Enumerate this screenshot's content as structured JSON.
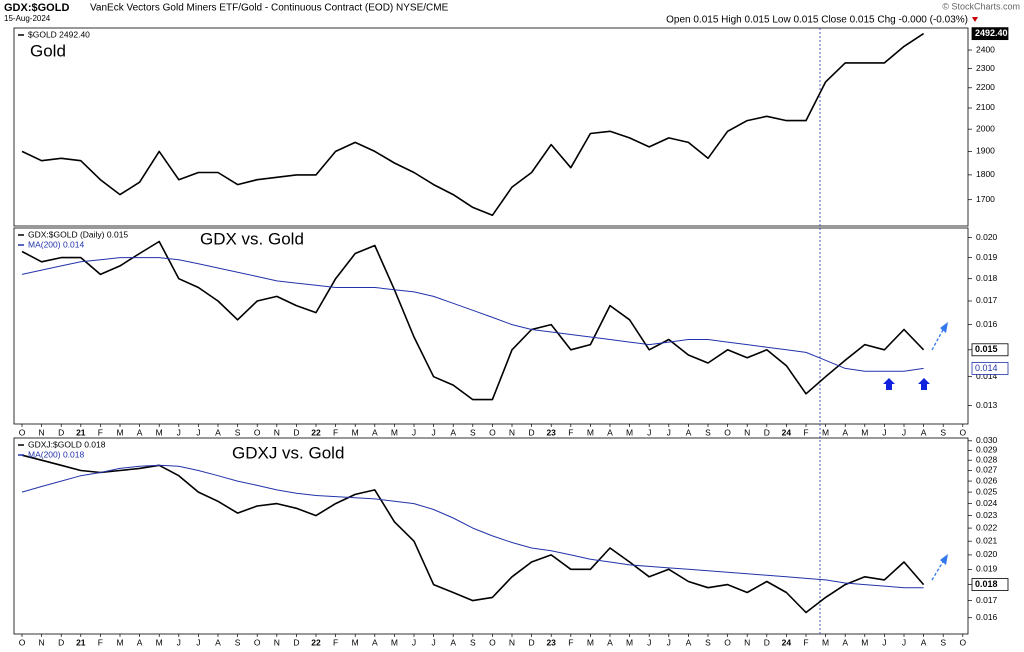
{
  "header": {
    "symbol": "GDX:$GOLD",
    "description": "VanEck Vectors Gold Miners ETF/Gold - Continuous Contract (EOD) NYSE/CME",
    "date": "15-Aug-2024",
    "quote": "Open 0.015 High 0.015 Low 0.015 Close 0.015 Chg -0.000 (-0.03%)",
    "source": "© StockCharts.com"
  },
  "chart_data": [
    {
      "type": "line",
      "title": "Gold",
      "log_scale": true,
      "ylim": [
        1600,
        2525
      ],
      "yticks": [
        1700,
        1800,
        1900,
        2000,
        2100,
        2200,
        2300,
        2400
      ],
      "series": [
        {
          "name": "$GOLD 2492.40",
          "color": "#000000",
          "last_label": "2492.40",
          "values": [
            1900,
            1860,
            1870,
            1860,
            1780,
            1720,
            1770,
            1900,
            1780,
            1810,
            1810,
            1760,
            1780,
            1790,
            1800,
            1800,
            1900,
            1940,
            1900,
            1850,
            1810,
            1760,
            1720,
            1670,
            1640,
            1750,
            1810,
            1930,
            1830,
            1980,
            1990,
            1960,
            1920,
            1960,
            1940,
            1870,
            1990,
            2040,
            2060,
            2040,
            2040,
            2230,
            2330,
            2330,
            2330,
            2420,
            2492.4,
            null,
            null
          ]
        }
      ]
    },
    {
      "type": "line",
      "title": "GDX vs. Gold",
      "log_scale": true,
      "ylim": [
        0.0124,
        0.0205
      ],
      "yticks": [
        0.013,
        0.014,
        0.015,
        0.016,
        0.017,
        0.018,
        0.019,
        {
          "value": 0.02,
          "label": "0.020"
        }
      ],
      "categories": [
        "O",
        "N",
        "D",
        "21",
        "F",
        "M",
        "A",
        "M",
        "J",
        "J",
        "A",
        "S",
        "O",
        "N",
        "D",
        "22",
        "F",
        "M",
        "A",
        "M",
        "J",
        "J",
        "A",
        "S",
        "O",
        "N",
        "D",
        "23",
        "F",
        "M",
        "A",
        "M",
        "J",
        "J",
        "A",
        "S",
        "O",
        "N",
        "D",
        "24",
        "F",
        "M",
        "A",
        "M",
        "J",
        "J",
        "A",
        "S",
        "O"
      ],
      "series": [
        {
          "name": "GDX:$GOLD (Daily) 0.015",
          "color": "#000000",
          "last_label": "0.015",
          "values": [
            0.0193,
            0.0188,
            0.019,
            0.019,
            0.0182,
            0.0186,
            0.0192,
            0.0198,
            0.018,
            0.0176,
            0.017,
            0.0162,
            0.017,
            0.0172,
            0.0168,
            0.0165,
            0.018,
            0.0192,
            0.0196,
            0.0175,
            0.0155,
            0.014,
            0.0137,
            0.0132,
            0.0132,
            0.015,
            0.0158,
            0.016,
            0.015,
            0.0152,
            0.0168,
            0.0162,
            0.015,
            0.0154,
            0.0148,
            0.0145,
            0.015,
            0.0147,
            0.015,
            0.0144,
            0.0134,
            0.014,
            0.0146,
            0.0152,
            0.015,
            0.0158,
            0.015,
            null,
            null
          ]
        },
        {
          "name": "MA(200) 0.014",
          "color": "#2233aa",
          "last_label": "0.014",
          "values": [
            0.0182,
            0.0184,
            0.0186,
            0.0188,
            0.0189,
            0.019,
            0.019,
            0.019,
            0.0189,
            0.0187,
            0.0185,
            0.0183,
            0.0181,
            0.0179,
            0.0178,
            0.0177,
            0.0176,
            0.0176,
            0.0176,
            0.0175,
            0.0174,
            0.0172,
            0.0169,
            0.0166,
            0.0163,
            0.016,
            0.0158,
            0.0157,
            0.0156,
            0.0155,
            0.0154,
            0.0153,
            0.0152,
            0.0153,
            0.0154,
            0.0154,
            0.0153,
            0.0152,
            0.0151,
            0.015,
            0.0149,
            0.0146,
            0.0143,
            0.0142,
            0.0142,
            0.0142,
            0.0143,
            null,
            null
          ]
        }
      ]
    },
    {
      "type": "line",
      "title": "GDXJ vs. Gold",
      "log_scale": true,
      "ylim": [
        0.0151,
        0.0303
      ],
      "yticks": [
        0.016,
        0.017,
        0.018,
        0.019,
        {
          "value": 0.02,
          "label": "0.020"
        },
        0.021,
        0.022,
        0.023,
        0.024,
        0.025,
        0.026,
        0.027,
        0.028,
        0.029,
        {
          "value": 0.03,
          "label": "0.030"
        }
      ],
      "categories": [
        "O",
        "N",
        "D",
        "21",
        "F",
        "M",
        "A",
        "M",
        "J",
        "J",
        "A",
        "S",
        "O",
        "N",
        "D",
        "22",
        "F",
        "M",
        "A",
        "M",
        "J",
        "J",
        "A",
        "S",
        "O",
        "N",
        "D",
        "23",
        "F",
        "M",
        "A",
        "M",
        "J",
        "J",
        "A",
        "S",
        "O",
        "N",
        "D",
        "24",
        "F",
        "M",
        "A",
        "M",
        "J",
        "J",
        "A",
        "S",
        "O"
      ],
      "series": [
        {
          "name": "GDXJ:$GOLD 0.018",
          "color": "#000000",
          "last_label": "0.018",
          "values": [
            0.0285,
            0.028,
            0.0275,
            0.027,
            0.0268,
            0.027,
            0.0272,
            0.0275,
            0.0265,
            0.025,
            0.0242,
            0.0232,
            0.0238,
            0.024,
            0.0236,
            0.023,
            0.024,
            0.0248,
            0.0252,
            0.0225,
            0.021,
            0.018,
            0.0175,
            0.017,
            0.0172,
            0.0185,
            0.0195,
            0.02,
            0.019,
            0.019,
            0.0205,
            0.0195,
            0.0185,
            0.019,
            0.0182,
            0.0178,
            0.018,
            0.0175,
            0.0182,
            0.0175,
            0.0163,
            0.0172,
            0.018,
            0.0185,
            0.0183,
            0.0195,
            0.018,
            null,
            null
          ]
        },
        {
          "name": "MA(200) 0.018",
          "color": "#2233aa",
          "values": [
            0.025,
            0.0255,
            0.026,
            0.0265,
            0.0268,
            0.0272,
            0.0274,
            0.0275,
            0.0274,
            0.027,
            0.0265,
            0.026,
            0.0256,
            0.0252,
            0.0249,
            0.0247,
            0.0246,
            0.0245,
            0.0244,
            0.0242,
            0.024,
            0.0235,
            0.0228,
            0.022,
            0.0214,
            0.0209,
            0.0205,
            0.0203,
            0.02,
            0.0197,
            0.0195,
            0.0193,
            0.0192,
            0.0191,
            0.019,
            0.0189,
            0.0188,
            0.0187,
            0.0186,
            0.0185,
            0.0184,
            0.0183,
            0.0181,
            0.018,
            0.0179,
            0.0178,
            0.0178,
            null,
            null
          ]
        }
      ]
    }
  ]
}
